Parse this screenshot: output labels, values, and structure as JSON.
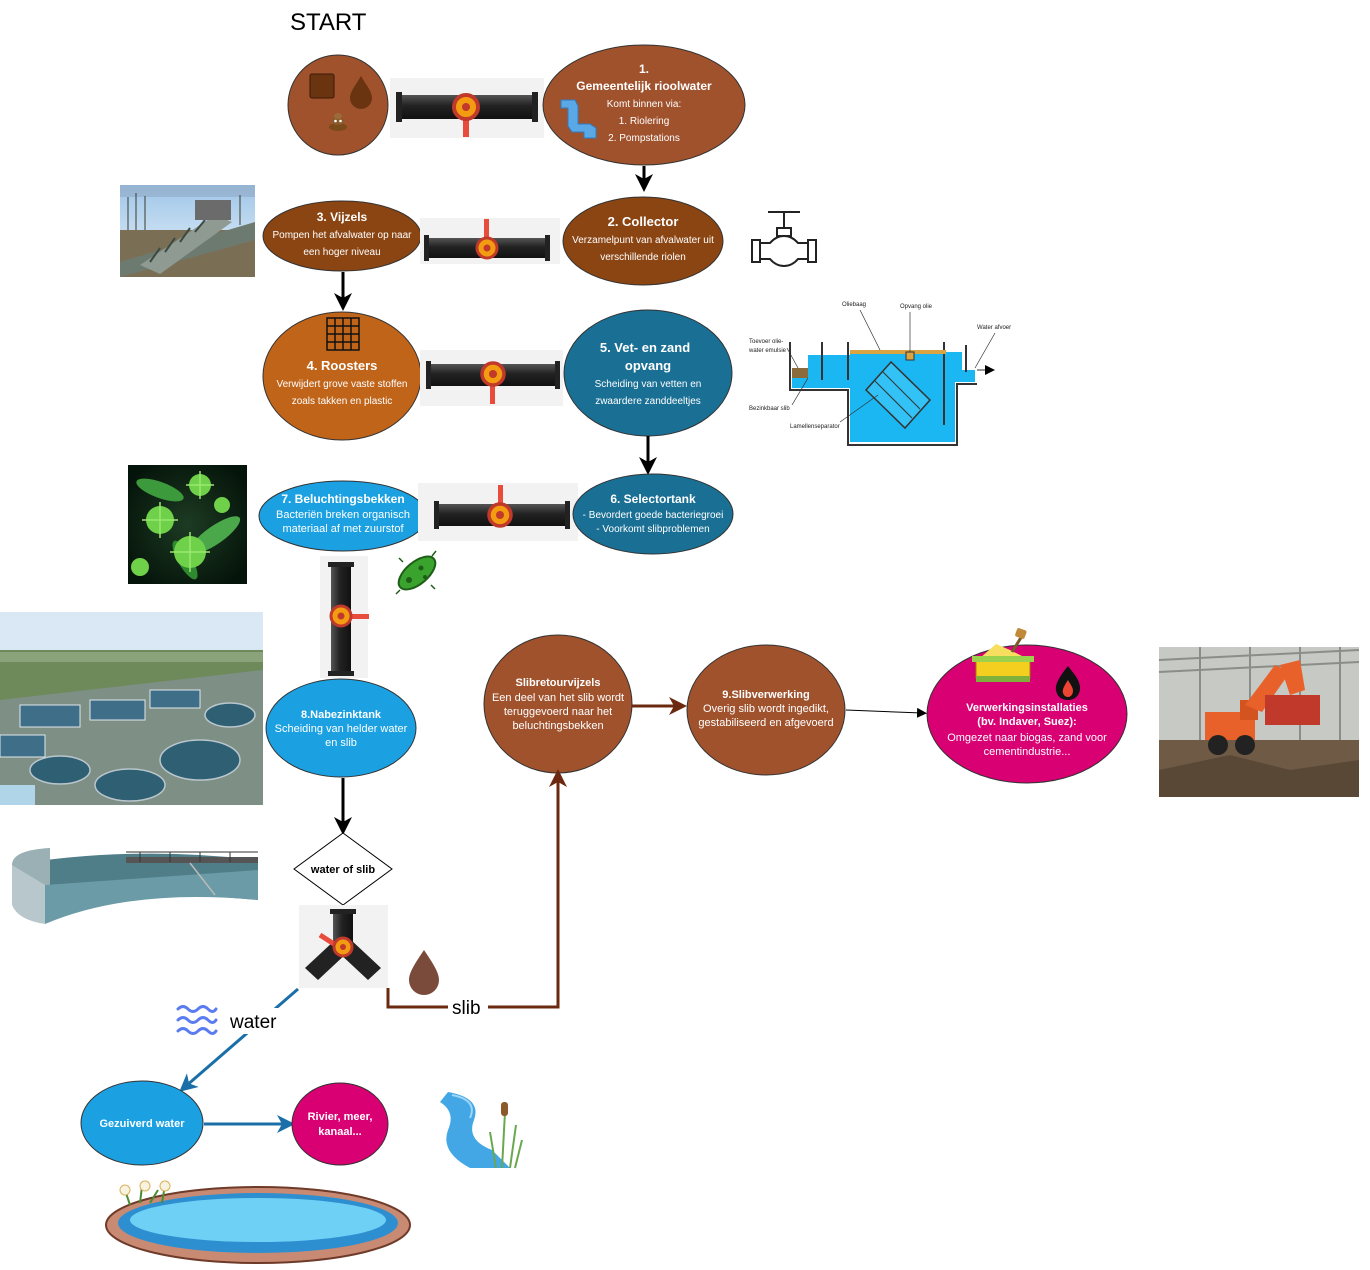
{
  "start_label": "START",
  "colors": {
    "brown_dark": "#8B4513",
    "brown_mid": "#A0522D",
    "orange_brown": "#C0641A",
    "teal": "#1A6F94",
    "blue": "#1BA1E2",
    "magenta": "#D80073",
    "arrow_brown": "#6B2A10",
    "arrow_blue": "#1A6FA8"
  },
  "nodes": {
    "n1": {
      "title_1": "1.",
      "title_2": "Gemeentelijk rioolwater",
      "line1": "Komt binnen via:",
      "line2": "1. Riolering",
      "line3": "2. Pompstations"
    },
    "n2": {
      "title": "2. Collector",
      "line1": "Verzamelpunt van afvalwater uit",
      "line2": "verschillende riolen"
    },
    "n3": {
      "title": "3. Vijzels",
      "line1": "Pompen het afvalwater op naar",
      "line2": "een hoger niveau"
    },
    "n4": {
      "title": "4. Roosters",
      "line1": "Verwijdert grove vaste stoffen",
      "line2": "zoals takken en plastic"
    },
    "n5": {
      "title_1": "5. Vet- en zand",
      "title_2": "opvang",
      "line1": "Scheiding van vetten en",
      "line2": "zwaardere zanddeeltjes"
    },
    "n6": {
      "title": "6. Selectortank",
      "line1": "- Bevordert goede bacteriegroei",
      "line2": "- Voorkomt slibproblemen"
    },
    "n7": {
      "title": "7. Beluchtingsbekken",
      "line1": "Bacteriën breken organisch",
      "line2": "materiaal af met zuurstof"
    },
    "n8": {
      "title": "8.Nabezinktank",
      "line1": "Scheiding van helder water",
      "line2": "en slib"
    },
    "n9": {
      "title": "9.Slibverwerking",
      "line1": "Overig slib wordt ingedikt,",
      "line2": "gestabiliseerd en afgevoerd"
    },
    "slibretour": {
      "title": "Slibretourvijzels",
      "line1": "Een deel van het slib wordt",
      "line2": "teruggevoerd naar het",
      "line3": "beluchtingsbekken"
    },
    "verwerking": {
      "title_1": "Verwerkingsinstallaties",
      "title_2": "(bv. Indaver, Suez):",
      "line1": "Omgezet naar biogas, zand voor",
      "line2": "cementindustrie..."
    },
    "gezuiverd": {
      "title": "Gezuiverd water"
    },
    "rivier": {
      "title_1": "Rivier, meer,",
      "title_2": "kanaal..."
    },
    "decision": {
      "label": "water of slib"
    }
  },
  "edge_labels": {
    "water": "water",
    "slib": "slib"
  },
  "separator_labels": {
    "oliebaag": "Oliebaag",
    "opvang_olie": "Opvang olie",
    "water_afvoer": "Water afvoer",
    "toevoer_1": "Toevoer olie-",
    "toevoer_2": "water emulsie",
    "bezinkbaar": "Bezinkbaar slib",
    "lamellen": "Lamellenseparator"
  }
}
